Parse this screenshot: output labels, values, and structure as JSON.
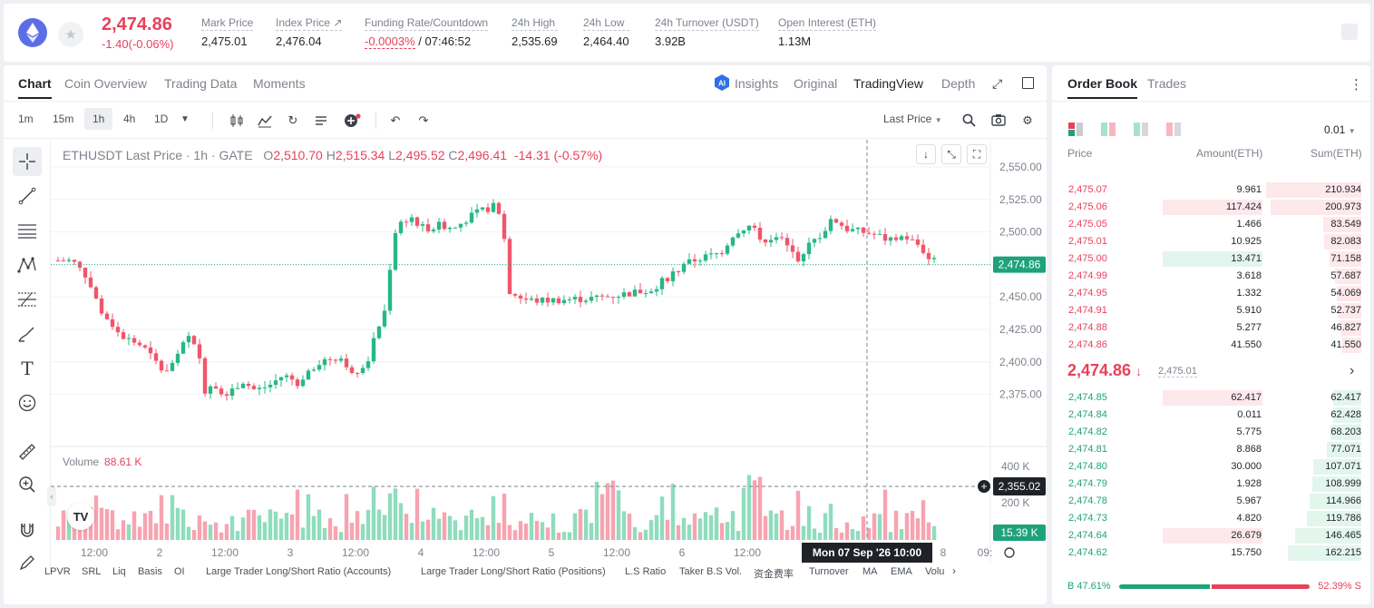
{
  "header": {
    "last_price": "2,474.86",
    "change": "-1.40(-0.06%)",
    "stats": [
      {
        "label": "Mark Price",
        "value": "2,475.01"
      },
      {
        "label": "Index Price ↗",
        "value": "2,476.04"
      },
      {
        "label": "Funding Rate/Countdown",
        "value_neg": "-0.0003%",
        "value": " / 07:46:52"
      },
      {
        "label": "24h High",
        "value": "2,535.69"
      },
      {
        "label": "24h Low",
        "value": "2,464.40"
      },
      {
        "label": "24h Turnover (USDT)",
        "value": "3.92B"
      },
      {
        "label": "Open Interest (ETH)",
        "value": "1.13M"
      }
    ]
  },
  "chart_tabs": [
    "Chart",
    "Coin Overview",
    "Trading Data",
    "Moments"
  ],
  "view_tabs": [
    "Insights",
    "Original",
    "TradingView",
    "Depth"
  ],
  "timeframes": [
    "1m",
    "15m",
    "1h",
    "4h",
    "1D"
  ],
  "price_source": "Last Price",
  "legend": {
    "symbol": "ETHUSDT Last Price · 1h · GATE",
    "o": "2,510.70",
    "h": "2,515.34",
    "l": "2,495.52",
    "c": "2,496.41",
    "chg": "-14.31 (-0.57%)"
  },
  "volume_legend": {
    "label": "Volume",
    "value": "88.61 K"
  },
  "price_tag": "2,474.86",
  "crosshair_price": "2,355.02",
  "crosshair_time": "Mon 07 Sep '26   10:00",
  "volume_tag": "15.39 K",
  "chart_data": {
    "type": "candlestick",
    "y_ticks": [
      "2,550.00",
      "2,525.00",
      "2,500.00",
      "2,475.00",
      "2,450.00",
      "2,425.00",
      "2,400.00",
      "2,375.00"
    ],
    "vol_ticks": [
      "400 K",
      "200 K"
    ],
    "x_ticks": [
      "12:00",
      "2",
      "12:00",
      "3",
      "12:00",
      "4",
      "12:00",
      "5",
      "12:00",
      "6",
      "12:00",
      "8",
      "09:"
    ]
  },
  "indicators": [
    "LPVR",
    "SRL",
    "Liq",
    "Basis",
    "OI",
    "Large Trader Long/Short Ratio (Accounts)",
    "Large Trader Long/Short Ratio (Positions)",
    "L.S Ratio",
    "Taker B.S Vol.",
    "资金费率",
    "Turnover",
    "MA",
    "EMA",
    "Volu"
  ],
  "orderbook": {
    "tabs": [
      "Order Book",
      "Trades"
    ],
    "precision": "0.01",
    "headers": [
      "Price",
      "Amount(ETH)",
      "Sum(ETH)"
    ],
    "asks": [
      [
        "2,475.07",
        "9.961",
        "210.934"
      ],
      [
        "2,475.06",
        "117.424",
        "200.973"
      ],
      [
        "2,475.05",
        "1.466",
        "83.549"
      ],
      [
        "2,475.01",
        "10.925",
        "82.083"
      ],
      [
        "2,475.00",
        "13.471",
        "71.158"
      ],
      [
        "2,474.99",
        "3.618",
        "57.687"
      ],
      [
        "2,474.95",
        "1.332",
        "54.069"
      ],
      [
        "2,474.91",
        "5.910",
        "52.737"
      ],
      [
        "2,474.88",
        "5.277",
        "46.827"
      ],
      [
        "2,474.86",
        "41.550",
        "41.550"
      ]
    ],
    "mid_price": "2,474.86",
    "mid_mark": "2,475.01",
    "bids": [
      [
        "2,474.85",
        "62.417",
        "62.417"
      ],
      [
        "2,474.84",
        "0.011",
        "62.428"
      ],
      [
        "2,474.82",
        "5.775",
        "68.203"
      ],
      [
        "2,474.81",
        "8.868",
        "77.071"
      ],
      [
        "2,474.80",
        "30.000",
        "107.071"
      ],
      [
        "2,474.79",
        "1.928",
        "108.999"
      ],
      [
        "2,474.78",
        "5.967",
        "114.966"
      ],
      [
        "2,474.73",
        "4.820",
        "119.786"
      ],
      [
        "2,474.64",
        "26.679",
        "146.465"
      ],
      [
        "2,474.62",
        "15.750",
        "162.215"
      ]
    ],
    "buy_pct": "B 47.61%",
    "sell_pct": "52.39% S",
    "buy_fraction": 0.4761
  }
}
